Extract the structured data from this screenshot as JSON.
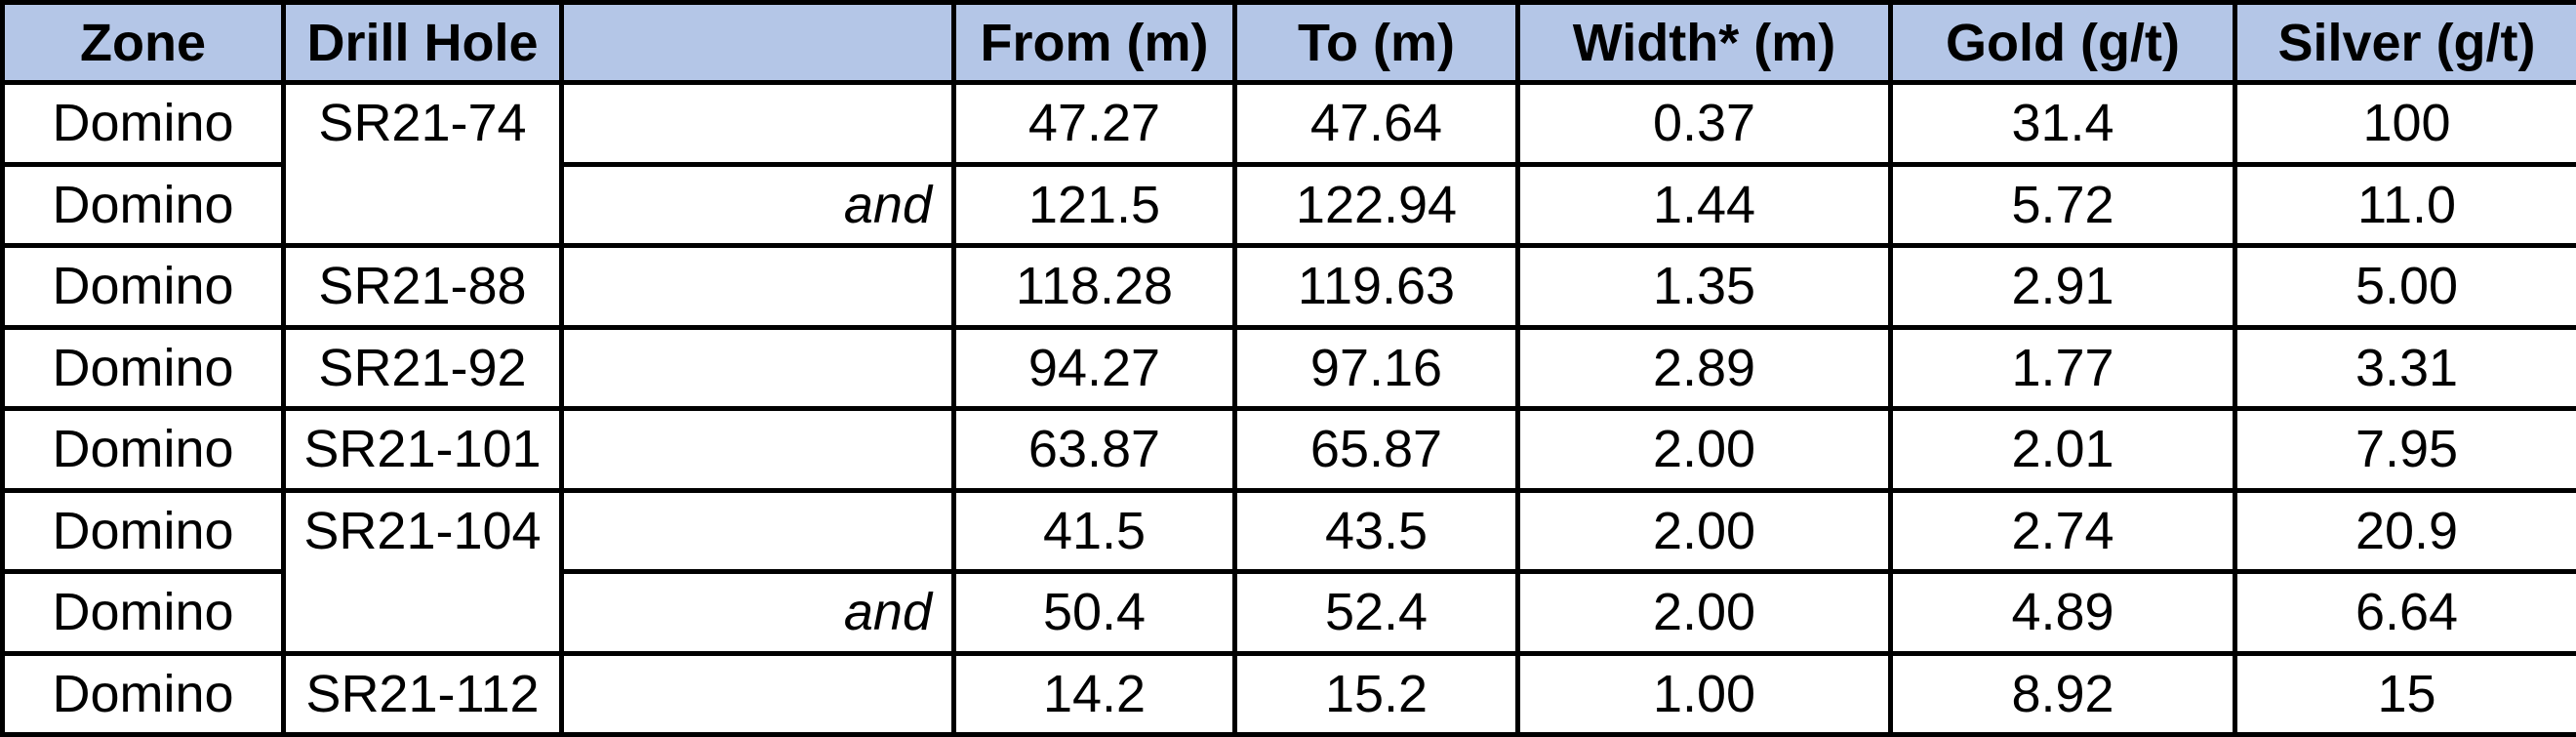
{
  "headers": {
    "zone": "Zone",
    "drill_hole": "Drill Hole",
    "note": "",
    "from": "From (m)",
    "to": "To (m)",
    "width": "Width* (m)",
    "gold": "Gold (g/t)",
    "silver": "Silver (g/t)"
  },
  "rows": [
    {
      "zone": "Domino",
      "drill_hole": "SR21-74",
      "note": "",
      "from": "47.27",
      "to": "47.64",
      "width": "0.37",
      "gold": "31.4",
      "silver": "100"
    },
    {
      "zone": "Domino",
      "drill_hole": "",
      "note": "and",
      "from": "121.5",
      "to": "122.94",
      "width": "1.44",
      "gold": "5.72",
      "silver": "11.0"
    },
    {
      "zone": "Domino",
      "drill_hole": "SR21-88",
      "note": "",
      "from": "118.28",
      "to": "119.63",
      "width": "1.35",
      "gold": "2.91",
      "silver": "5.00"
    },
    {
      "zone": "Domino",
      "drill_hole": "SR21-92",
      "note": "",
      "from": "94.27",
      "to": "97.16",
      "width": "2.89",
      "gold": "1.77",
      "silver": "3.31"
    },
    {
      "zone": "Domino",
      "drill_hole": "SR21-101",
      "note": "",
      "from": "63.87",
      "to": "65.87",
      "width": "2.00",
      "gold": "2.01",
      "silver": "7.95"
    },
    {
      "zone": "Domino",
      "drill_hole": "SR21-104",
      "note": "",
      "from": "41.5",
      "to": "43.5",
      "width": "2.00",
      "gold": "2.74",
      "silver": "20.9"
    },
    {
      "zone": "Domino",
      "drill_hole": "",
      "note": "and",
      "from": "50.4",
      "to": "52.4",
      "width": "2.00",
      "gold": "4.89",
      "silver": "6.64"
    },
    {
      "zone": "Domino",
      "drill_hole": "SR21-112",
      "note": "",
      "from": "14.2",
      "to": "15.2",
      "width": "1.00",
      "gold": "8.92",
      "silver": "15"
    }
  ]
}
